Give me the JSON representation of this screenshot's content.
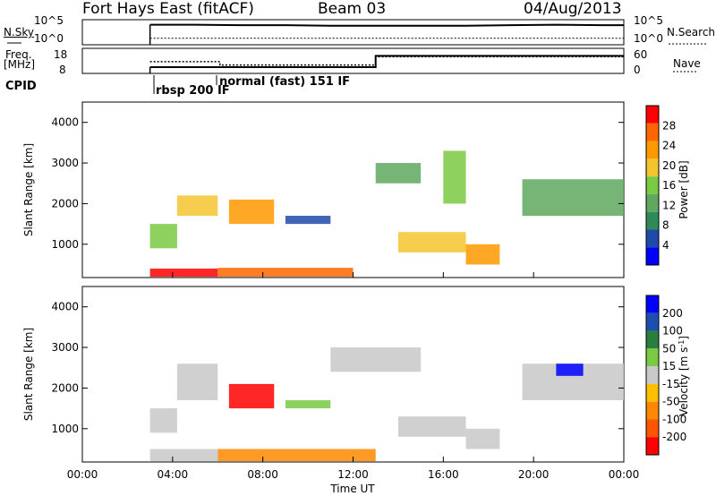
{
  "header": {
    "station": "Fort Hays East (fitACF)",
    "beam": "Beam 03",
    "date": "04/Aug/2013"
  },
  "top_panels": {
    "nsky_label": "N.Sky",
    "nsky_ticks": [
      "10^5",
      "10^0"
    ],
    "nsearch_label": "N.Search",
    "nsearch_ticks": [
      "10^5",
      "10^0"
    ],
    "freq_label": "Freq.",
    "freq_unit": "[MHz]",
    "freq_ticks": [
      "18",
      "8"
    ],
    "nave_label": "Nave",
    "nave_ticks": [
      "60",
      "0"
    ],
    "cpid_label": "CPID",
    "cpid_modes": [
      "rbsp 200 IF",
      "normal (fast) 151 IF"
    ]
  },
  "colors": {
    "power": [
      "#0000ff",
      "#1f4aa8",
      "#2e8b57",
      "#5fa85f",
      "#7ac943",
      "#f4c430",
      "#ff9900",
      "#ff6600",
      "#ff0000"
    ],
    "velocity": [
      "#0000ff",
      "#1c4fb0",
      "#2a7f3f",
      "#7ac943",
      "#c8c8c8",
      "#ffbf00",
      "#ff8800",
      "#ff5500",
      "#ff0000"
    ]
  },
  "chart_data": [
    {
      "type": "line",
      "x": [
        3.0,
        3.5,
        5,
        7,
        9,
        11,
        13,
        15,
        17,
        19,
        21,
        23,
        24
      ],
      "series": [
        {
          "name": "N.Sky",
          "values": [
            4.0,
            4.0,
            4.0,
            3.9,
            3.9,
            3.8,
            3.8,
            3.8,
            3.8,
            3.9,
            4.0,
            3.9,
            3.9
          ]
        },
        {
          "name": "N.Search",
          "values": [
            1.3,
            1.3,
            1.3,
            1.3,
            1.3,
            1.3,
            1.3,
            1.3,
            1.3,
            1.3,
            1.3,
            1.3,
            1.3
          ]
        }
      ]
    },
    {
      "type": "line",
      "x": [
        3.0,
        6.1,
        6.1,
        13.0,
        13.0,
        24.0
      ],
      "series": [
        {
          "name": "Freq.",
          "values": [
            10.5,
            10.5,
            10.5,
            10.5,
            15.0,
            15.0
          ]
        },
        {
          "name": "Nave",
          "values": [
            28,
            28,
            20,
            20,
            40,
            40
          ]
        }
      ]
    },
    {
      "type": "heatmap",
      "xlabel": "",
      "ylabel": "Slant Range [km]",
      "xlim": [
        0,
        24
      ],
      "ylim": [
        180,
        4500
      ],
      "colorbar_label": "Power [dB]",
      "colorbar_ticks": [
        "28",
        "24",
        "20",
        "16",
        "12",
        "8",
        "4"
      ],
      "y_ticks": [
        "4000",
        "3000",
        "2000",
        "1000"
      ],
      "bands": [
        {
          "t": [
            3.0,
            4.2
          ],
          "r": [
            900,
            1500
          ],
          "level": 4
        },
        {
          "t": [
            4.2,
            6.0
          ],
          "r": [
            1700,
            2200
          ],
          "level": 5
        },
        {
          "t": [
            6.5,
            8.5
          ],
          "r": [
            1500,
            2100
          ],
          "level": 6
        },
        {
          "t": [
            9.0,
            11.0
          ],
          "r": [
            1500,
            1700
          ],
          "level": 1
        },
        {
          "t": [
            13.0,
            15.0
          ],
          "r": [
            2500,
            3000
          ],
          "level": 3
        },
        {
          "t": [
            14.0,
            17.0
          ],
          "r": [
            800,
            1300
          ],
          "level": 5
        },
        {
          "t": [
            17.0,
            18.5
          ],
          "r": [
            500,
            1000
          ],
          "level": 6
        },
        {
          "t": [
            16.0,
            17.0
          ],
          "r": [
            2000,
            3300
          ],
          "level": 4
        },
        {
          "t": [
            19.5,
            24.0
          ],
          "r": [
            1700,
            2600
          ],
          "level": 3
        },
        {
          "t": [
            6.0,
            12.0
          ],
          "r": [
            200,
            420
          ],
          "level": 7
        },
        {
          "t": [
            3.0,
            6.0
          ],
          "r": [
            200,
            400
          ],
          "level": 8
        }
      ]
    },
    {
      "type": "heatmap",
      "xlabel": "Time UT",
      "ylabel": "Slant Range [km]",
      "xlim": [
        0,
        24
      ],
      "ylim": [
        180,
        4500
      ],
      "colorbar_label": "Velocity [m s",
      "colorbar_sup": "-1",
      "colorbar_tail": "]",
      "colorbar_ticks": [
        "200",
        "100",
        "50",
        "15",
        "-15",
        "-50",
        "-100",
        "-200"
      ],
      "y_ticks": [
        "4000",
        "3000",
        "2000",
        "1000"
      ],
      "x_ticks": [
        "00:00",
        "04:00",
        "08:00",
        "12:00",
        "16:00",
        "20:00",
        "00:00"
      ],
      "bands": [
        {
          "t": [
            3.0,
            4.2
          ],
          "r": [
            900,
            1500
          ],
          "level": 4
        },
        {
          "t": [
            4.2,
            6.0
          ],
          "r": [
            1700,
            2600
          ],
          "level": 4
        },
        {
          "t": [
            6.5,
            8.5
          ],
          "r": [
            1500,
            2100
          ],
          "level": 8
        },
        {
          "t": [
            9.0,
            11.0
          ],
          "r": [
            1500,
            1700
          ],
          "level": 3
        },
        {
          "t": [
            11.0,
            15.0
          ],
          "r": [
            2400,
            3000
          ],
          "level": 4
        },
        {
          "t": [
            14.0,
            17.0
          ],
          "r": [
            800,
            1300
          ],
          "level": 4
        },
        {
          "t": [
            17.0,
            18.5
          ],
          "r": [
            500,
            1000
          ],
          "level": 4
        },
        {
          "t": [
            19.5,
            24.0
          ],
          "r": [
            1700,
            2600
          ],
          "level": 4
        },
        {
          "t": [
            21.0,
            22.2
          ],
          "r": [
            2300,
            2600
          ],
          "level": 0
        },
        {
          "t": [
            6.0,
            13.0
          ],
          "r": [
            200,
            500
          ],
          "level": 6
        },
        {
          "t": [
            3.0,
            6.0
          ],
          "r": [
            200,
            500
          ],
          "level": 4
        }
      ]
    }
  ]
}
